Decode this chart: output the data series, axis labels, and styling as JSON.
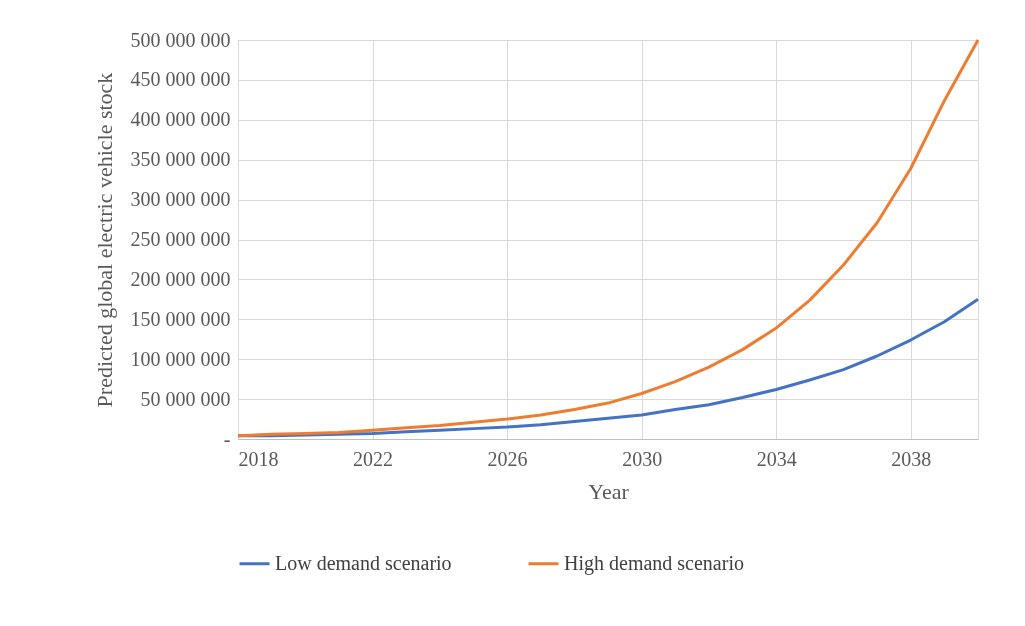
{
  "chart_data": {
    "type": "line",
    "xlabel": "Year",
    "ylabel": "Predicted global electric vehicle stock",
    "x": [
      2018,
      2019,
      2020,
      2021,
      2022,
      2023,
      2024,
      2025,
      2026,
      2027,
      2028,
      2029,
      2030,
      2031,
      2032,
      2033,
      2034,
      2035,
      2036,
      2037,
      2038,
      2039,
      2040
    ],
    "series": [
      {
        "name": "Low demand scenario",
        "color": "#4472c4",
        "values": [
          4000000.0,
          4000000.0,
          5000000.0,
          6000000.0,
          7000000.0,
          9000000.0,
          11000000.0,
          13000000.0,
          15000000.0,
          18000000.0,
          22000000.0,
          26000000.0,
          30000000.0,
          37000000.0,
          43000000.0,
          52000000.0,
          62000000.0,
          74000000.0,
          87000000.0,
          104000000.0,
          124000000.0,
          147000000.0,
          175000000.0
        ]
      },
      {
        "name": "High demand scenario",
        "color": "#ed7d31",
        "values": [
          4000000.0,
          6000000.0,
          7000000.0,
          8000000.0,
          11000000.0,
          14000000.0,
          17000000.0,
          21000000.0,
          25000000.0,
          30000000.0,
          37000000.0,
          45000000.0,
          57000000.0,
          72000000.0,
          90000000.0,
          112000000.0,
          139000000.0,
          174000000.0,
          218000000.0,
          271000000.0,
          339000000.0,
          424000000.0,
          500000000.0
        ]
      }
    ],
    "xlim": [
      2018,
      2040
    ],
    "xticks": [
      2018,
      2022,
      2026,
      2030,
      2034,
      2038
    ],
    "ylim": [
      0,
      500000000
    ],
    "yticks": [
      {
        "value": 0,
        "label": "-"
      },
      {
        "value": 50000000,
        "label": "50 000 000"
      },
      {
        "value": 100000000,
        "label": "100 000 000"
      },
      {
        "value": 150000000,
        "label": "150 000 000"
      },
      {
        "value": 200000000,
        "label": "200 000 000"
      },
      {
        "value": 250000000,
        "label": "250 000 000"
      },
      {
        "value": 300000000,
        "label": "300 000 000"
      },
      {
        "value": 350000000,
        "label": "350 000 000"
      },
      {
        "value": 400000000,
        "label": "400 000 000"
      },
      {
        "value": 450000000,
        "label": "450 000 000"
      },
      {
        "value": 500000000,
        "label": "500 000 000"
      }
    ],
    "grid": true,
    "legend": "bottom",
    "marker": "none",
    "line_style": "solid"
  }
}
